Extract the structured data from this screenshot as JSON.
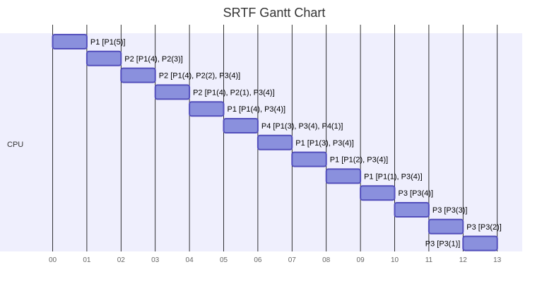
{
  "chart_data": {
    "type": "gantt",
    "title": "SRTF Gantt Chart",
    "section": "CPU",
    "xlim": [
      0,
      13
    ],
    "ticks": [
      "00",
      "01",
      "02",
      "03",
      "04",
      "05",
      "06",
      "07",
      "08",
      "09",
      "10",
      "11",
      "12",
      "13"
    ],
    "tasks": [
      {
        "label": "P1 [P1(5)]",
        "start": 0,
        "end": 1
      },
      {
        "label": "P2 [P1(4), P2(3)]",
        "start": 1,
        "end": 2
      },
      {
        "label": "P2 [P1(4), P2(2), P3(4)]",
        "start": 2,
        "end": 3
      },
      {
        "label": "P2 [P1(4), P2(1), P3(4)]",
        "start": 3,
        "end": 4
      },
      {
        "label": "P1 [P1(4), P3(4)]",
        "start": 4,
        "end": 5
      },
      {
        "label": "P4 [P1(3), P3(4), P4(1)]",
        "start": 5,
        "end": 6
      },
      {
        "label": "P1 [P1(3), P3(4)]",
        "start": 6,
        "end": 7
      },
      {
        "label": "P1 [P1(2), P3(4)]",
        "start": 7,
        "end": 8
      },
      {
        "label": "P1 [P1(1), P3(4)]",
        "start": 8,
        "end": 9
      },
      {
        "label": "P3 [P3(4)]",
        "start": 9,
        "end": 10
      },
      {
        "label": "P3 [P3(3)]",
        "start": 10,
        "end": 11
      },
      {
        "label": "P3 [P3(2)]",
        "start": 11,
        "end": 12
      },
      {
        "label": "P3 [P3(1)]",
        "start": 12,
        "end": 13
      }
    ],
    "colors": {
      "section_bg": "#efeffd",
      "bar_fill": "#8a90dd",
      "bar_stroke": "#534fbc",
      "grid": "#000000",
      "tick_text": "#666666",
      "label_text": "#000000"
    }
  }
}
